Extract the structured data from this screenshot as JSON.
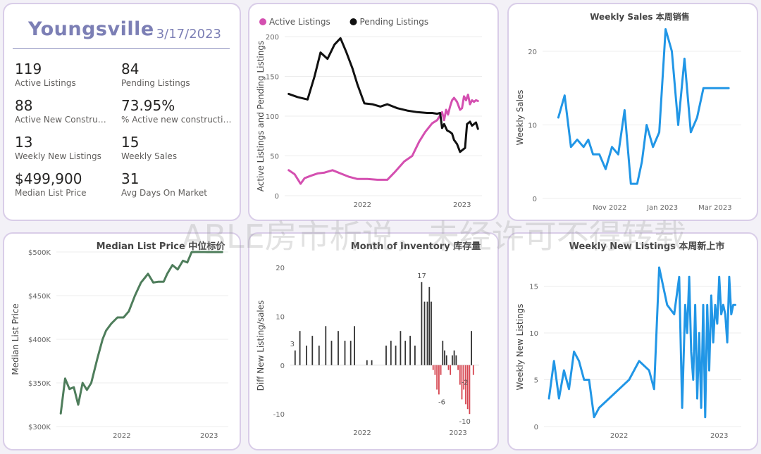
{
  "kpi": {
    "city": "Youngsville",
    "date": "3/17/2023",
    "items": [
      {
        "value": "119",
        "label": "Active Listings"
      },
      {
        "value": "84",
        "label": "Pending Listings"
      },
      {
        "value": "88",
        "label": "Active New Constructi..."
      },
      {
        "value": "73.95%",
        "label": "% Active new constructions"
      },
      {
        "value": "13",
        "label": "Weekly New Listings"
      },
      {
        "value": "15",
        "label": "Weekly Sales"
      },
      {
        "value": "$499,900",
        "label": "Median List Price"
      },
      {
        "value": "31",
        "label": "Avg Days On Market"
      }
    ]
  },
  "watermark": "ABLE房市析说，未经许可不得转载",
  "colors": {
    "active": "#d44fb0",
    "pending": "#111111",
    "blue": "#2196e6",
    "green": "#4e7d5b",
    "bar_pos": "#333333",
    "bar_neg": "#d64550",
    "kpi_accent": "#7c7fb5"
  },
  "chart_data": [
    {
      "id": "listings",
      "type": "line",
      "title": "",
      "xlabel": "",
      "ylabel": "Active Listings and Pending Listings",
      "legend_position": "top-left",
      "xlim": [
        2021.22,
        2023.2
      ],
      "ylim": [
        0,
        200
      ],
      "yticks": [
        0,
        50,
        100,
        150,
        200
      ],
      "xticks": [
        {
          "v": 2022.0,
          "label": "2022"
        },
        {
          "v": 2023.0,
          "label": "2023"
        }
      ],
      "grid": true,
      "series": [
        {
          "name": "Active Listings",
          "color": "#d44fb0",
          "x": [
            2021.26,
            2021.32,
            2021.38,
            2021.42,
            2021.48,
            2021.55,
            2021.62,
            2021.7,
            2021.78,
            2021.86,
            2021.95,
            2022.05,
            2022.15,
            2022.25,
            2022.32,
            2022.42,
            2022.5,
            2022.57,
            2022.63,
            2022.7,
            2022.75,
            2022.8,
            2022.82,
            2022.84,
            2022.86,
            2022.88,
            2022.9,
            2022.92,
            2022.95,
            2022.98,
            2023.0,
            2023.02,
            2023.04,
            2023.06,
            2023.08,
            2023.1,
            2023.12,
            2023.14,
            2023.16
          ],
          "y": [
            32,
            27,
            15,
            22,
            25,
            28,
            29,
            32,
            28,
            24,
            21,
            21,
            20,
            20,
            29,
            43,
            50,
            68,
            80,
            91,
            95,
            105,
            95,
            108,
            102,
            112,
            120,
            123,
            118,
            108,
            110,
            125,
            120,
            127,
            115,
            120,
            118,
            120,
            119
          ]
        },
        {
          "name": "Pending Listings",
          "color": "#111111",
          "x": [
            2021.26,
            2021.35,
            2021.45,
            2021.52,
            2021.58,
            2021.65,
            2021.72,
            2021.78,
            2021.84,
            2021.9,
            2021.95,
            2022.02,
            2022.1,
            2022.18,
            2022.25,
            2022.35,
            2022.45,
            2022.55,
            2022.65,
            2022.7,
            2022.75,
            2022.78,
            2022.8,
            2022.82,
            2022.85,
            2022.88,
            2022.9,
            2022.92,
            2022.95,
            2022.98,
            2023.0,
            2023.03,
            2023.05,
            2023.08,
            2023.1,
            2023.12,
            2023.14,
            2023.16
          ],
          "y": [
            128,
            124,
            121,
            150,
            180,
            172,
            190,
            198,
            180,
            160,
            140,
            116,
            115,
            112,
            115,
            110,
            107,
            105,
            104,
            104,
            103,
            104,
            85,
            90,
            82,
            80,
            78,
            70,
            65,
            55,
            57,
            60,
            90,
            93,
            88,
            90,
            92,
            84
          ]
        }
      ]
    },
    {
      "id": "weekly_sales",
      "type": "line",
      "title": "Weekly Sales 本周销售",
      "xlabel": "",
      "ylabel": "Weekly Sales",
      "xlim": [
        2022.62,
        2023.25
      ],
      "ylim": [
        0,
        22
      ],
      "yticks": [
        0,
        10,
        20
      ],
      "xticks": [
        {
          "v": 2022.833,
          "label": "Nov 2022"
        },
        {
          "v": 2023.0,
          "label": "Jan 2023"
        },
        {
          "v": 2023.167,
          "label": "Mar 2023"
        }
      ],
      "grid": true,
      "series": [
        {
          "name": "",
          "color": "#2196e6",
          "x": [
            2022.67,
            2022.69,
            2022.71,
            2022.73,
            2022.75,
            2022.765,
            2022.78,
            2022.8,
            2022.82,
            2022.84,
            2022.86,
            2022.88,
            2022.9,
            2022.92,
            2022.935,
            2022.95,
            2022.97,
            2022.99,
            2023.01,
            2023.03,
            2023.05,
            2023.07,
            2023.09,
            2023.11,
            2023.13,
            2023.15,
            2023.17,
            2023.19,
            2023.21
          ],
          "y": [
            11,
            14,
            7,
            8,
            7,
            8,
            6,
            6,
            4,
            7,
            6,
            12,
            2,
            2,
            5,
            10,
            7,
            9,
            23,
            20,
            10,
            19,
            9,
            11,
            15,
            15,
            15,
            15,
            15
          ]
        }
      ]
    },
    {
      "id": "median_price",
      "type": "line",
      "title": "Median List Price 中位标价",
      "xlabel": "",
      "ylabel": "Median List Price",
      "xlim": [
        2021.25,
        2023.22
      ],
      "ylim": [
        300000,
        500000
      ],
      "yticks": [
        300000,
        350000,
        400000,
        450000,
        500000
      ],
      "ytick_labels": [
        "$300K",
        "$350K",
        "$400K",
        "$450K",
        "$500K"
      ],
      "xticks": [
        {
          "v": 2022.0,
          "label": "2022"
        },
        {
          "v": 2023.0,
          "label": "2023"
        }
      ],
      "grid": true,
      "series": [
        {
          "name": "",
          "color": "#4e7d5b",
          "x": [
            2021.3,
            2021.35,
            2021.4,
            2021.45,
            2021.5,
            2021.55,
            2021.6,
            2021.65,
            2021.72,
            2021.78,
            2021.82,
            2021.88,
            2021.95,
            2022.02,
            2022.08,
            2022.15,
            2022.22,
            2022.3,
            2022.36,
            2022.42,
            2022.48,
            2022.52,
            2022.58,
            2022.64,
            2022.7,
            2022.75,
            2022.8,
            2022.85,
            2022.9,
            2022.95,
            2022.98,
            2023.02,
            2023.06,
            2023.1,
            2023.15
          ],
          "y": [
            315000,
            355000,
            343000,
            345000,
            325000,
            350000,
            342000,
            350000,
            378000,
            400000,
            410000,
            418000,
            425000,
            425000,
            432000,
            450000,
            465000,
            475000,
            465000,
            466000,
            466000,
            475000,
            485000,
            480000,
            490000,
            488000,
            499900,
            500000,
            500000,
            500000,
            499900,
            499900,
            499900,
            499900,
            499900
          ]
        }
      ]
    },
    {
      "id": "inventory",
      "type": "bar",
      "title": "Month of Inventory 库存量",
      "xlabel": "",
      "ylabel": "Diff New Listing/sales",
      "xlim": [
        2021.25,
        2023.22
      ],
      "ylim": [
        -12,
        20
      ],
      "yticks": [
        -10,
        0,
        10,
        20
      ],
      "xticks": [
        {
          "v": 2022.0,
          "label": "2022"
        },
        {
          "v": 2023.0,
          "label": "2023"
        }
      ],
      "data_labels": [
        {
          "x": 2022.65,
          "y": 17,
          "text": "17"
        },
        {
          "x": 2021.3,
          "y": 3,
          "text": "3"
        },
        {
          "x": 2022.86,
          "y": -6,
          "text": "-6"
        },
        {
          "x": 2023.1,
          "y": -10,
          "text": "-10"
        },
        {
          "x": 2023.1,
          "y": -2,
          "text": "-2"
        }
      ],
      "series": [
        {
          "name": "",
          "color_pos": "#333333",
          "color_neg": "#d64550",
          "x": [
            2021.3,
            2021.35,
            2021.42,
            2021.48,
            2021.55,
            2021.62,
            2021.68,
            2021.75,
            2021.82,
            2021.88,
            2021.92,
            2022.05,
            2022.1,
            2022.25,
            2022.3,
            2022.35,
            2022.4,
            2022.45,
            2022.5,
            2022.55,
            2022.62,
            2022.65,
            2022.68,
            2022.7,
            2022.72,
            2022.74,
            2022.76,
            2022.78,
            2022.8,
            2022.82,
            2022.84,
            2022.86,
            2022.88,
            2022.9,
            2022.92,
            2022.94,
            2022.96,
            2022.98,
            2023.0,
            2023.02,
            2023.04,
            2023.06,
            2023.08,
            2023.1,
            2023.12,
            2023.14,
            2023.16
          ],
          "y": [
            3,
            7,
            4,
            6,
            4,
            8,
            5,
            7,
            5,
            5,
            8,
            1,
            1,
            4,
            5,
            4,
            7,
            5,
            6,
            4,
            17,
            13,
            13,
            16,
            13,
            -1,
            -2,
            -5,
            -6,
            -2,
            5,
            3,
            2,
            -1,
            -2,
            2,
            3,
            2,
            -1,
            -4,
            -7,
            -5,
            -8,
            -9,
            -10,
            7,
            -2
          ]
        }
      ]
    },
    {
      "id": "weekly_new",
      "type": "line",
      "title": "Weekly New Listings 本周新上市",
      "xlabel": "",
      "ylabel": "Weekly New Listings",
      "xlim": [
        2021.25,
        2023.22
      ],
      "ylim": [
        0,
        17
      ],
      "yticks": [
        0,
        5,
        10,
        15
      ],
      "xticks": [
        {
          "v": 2022.0,
          "label": "2022"
        },
        {
          "v": 2023.0,
          "label": "2023"
        }
      ],
      "grid": true,
      "series": [
        {
          "name": "",
          "color": "#2196e6",
          "x": [
            2021.3,
            2021.35,
            2021.4,
            2021.45,
            2021.5,
            2021.55,
            2021.6,
            2021.65,
            2021.7,
            2021.75,
            2021.8,
            2021.9,
            2022.0,
            2022.1,
            2022.2,
            2022.3,
            2022.35,
            2022.4,
            2022.48,
            2022.55,
            2022.6,
            2022.63,
            2022.66,
            2022.68,
            2022.7,
            2022.72,
            2022.74,
            2022.76,
            2022.78,
            2022.8,
            2022.82,
            2022.84,
            2022.86,
            2022.88,
            2022.9,
            2022.92,
            2022.94,
            2022.96,
            2022.98,
            2023.0,
            2023.02,
            2023.04,
            2023.06,
            2023.08,
            2023.1,
            2023.12,
            2023.14,
            2023.16
          ],
          "y": [
            3,
            7,
            3,
            6,
            4,
            8,
            7,
            5,
            5,
            1,
            2,
            3,
            4,
            5,
            7,
            6,
            4,
            17,
            13,
            12,
            16,
            2,
            13,
            10,
            16,
            8,
            5,
            13,
            3,
            10,
            2,
            13,
            1,
            13,
            6,
            14,
            9,
            13,
            11,
            16,
            12,
            13,
            12,
            9,
            16,
            12,
            13,
            13
          ]
        }
      ]
    }
  ]
}
